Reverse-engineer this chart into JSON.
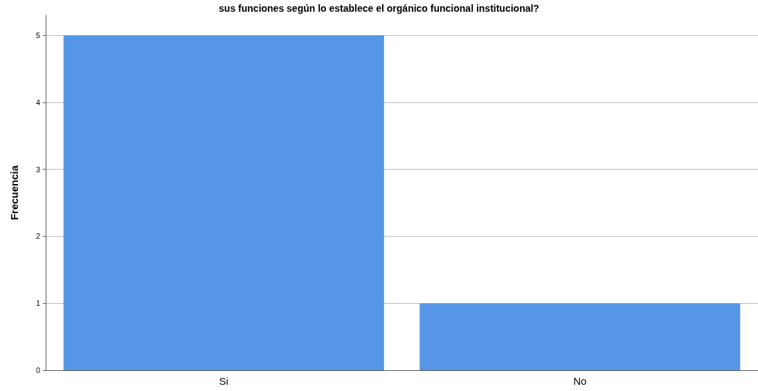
{
  "chart_data": {
    "type": "bar",
    "title": "sus funciones según lo establece el orgánico funcional institucional?",
    "ylabel": "Frecuencia",
    "categories": [
      "Si",
      "No"
    ],
    "values": [
      5,
      1
    ],
    "color": "#5596e6",
    "ylim": [
      0,
      5.3
    ],
    "yticks": [
      0,
      1,
      2,
      3,
      4,
      5
    ],
    "grid": "y"
  }
}
